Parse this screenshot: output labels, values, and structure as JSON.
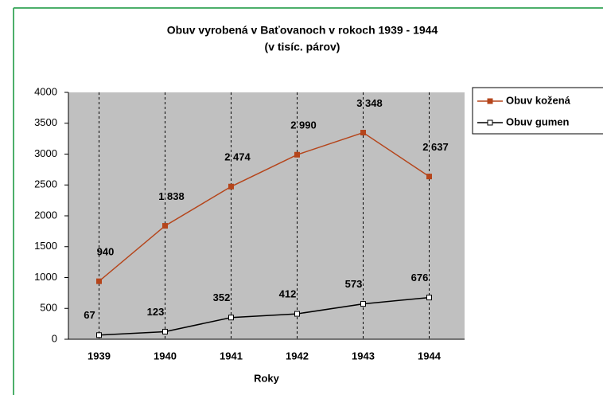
{
  "chart_data": {
    "type": "line",
    "title": "Obuv vyrobená v Baťovanoch v rokoch 1939 - 1944",
    "subtitle": "(v tisíc. párov)",
    "x_label": "Roky",
    "categories": [
      "1939",
      "1940",
      "1941",
      "1942",
      "1943",
      "1944"
    ],
    "series": [
      {
        "name": "Obuv kožená",
        "color": "#b5451b",
        "marker": "filled",
        "values": [
          940,
          1838,
          2474,
          2990,
          3348,
          2637
        ],
        "value_labels": [
          "940",
          "1 838",
          "2 474",
          "2 990",
          "3 348",
          "2 637"
        ]
      },
      {
        "name": "Obuv gumen",
        "color": "#000000",
        "marker": "hollow",
        "values": [
          67,
          123,
          352,
          412,
          573,
          676
        ],
        "value_labels": [
          "67",
          "123",
          "352",
          "412",
          "573",
          "676"
        ]
      }
    ],
    "ylim": [
      0,
      4000
    ],
    "yticks": [
      0,
      500,
      1000,
      1500,
      2000,
      2500,
      3000,
      3500,
      4000
    ],
    "grid": true,
    "legend": "right"
  }
}
